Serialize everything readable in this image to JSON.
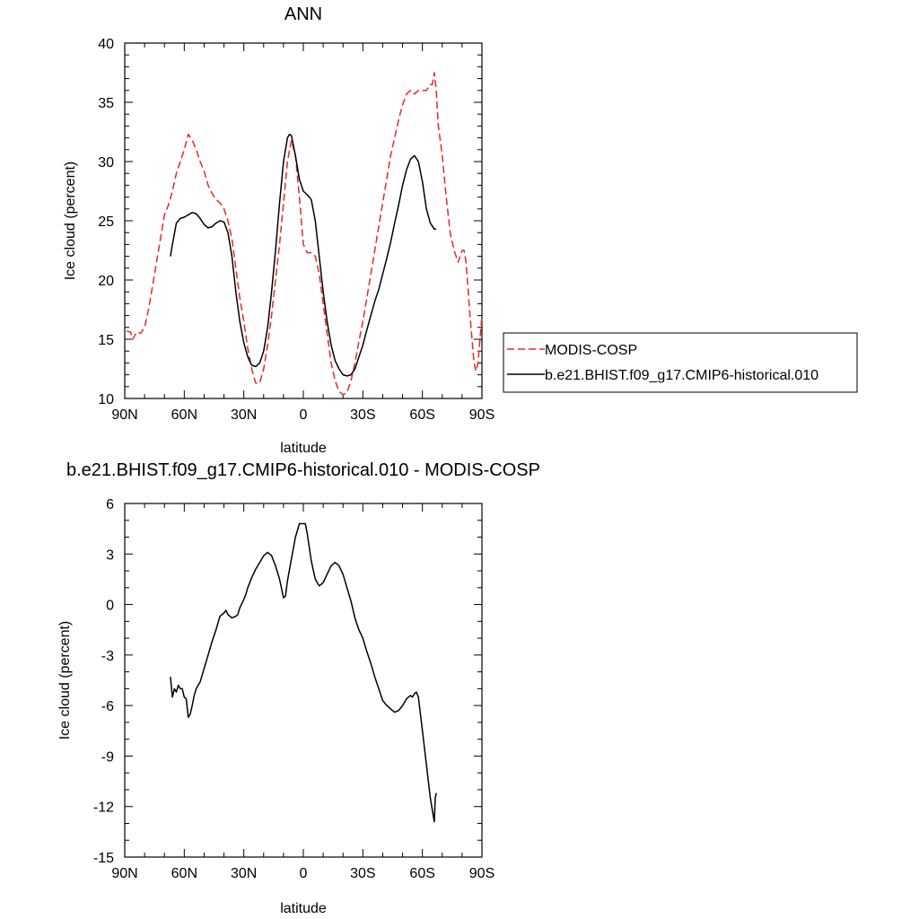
{
  "chart_data": [
    {
      "type": "line",
      "title": "ANN",
      "xlabel": "latitude",
      "ylabel": "Ice cloud (percent)",
      "xlim": [
        90,
        -90
      ],
      "ylim": [
        10,
        40
      ],
      "x_ticks": [
        90,
        60,
        30,
        0,
        -30,
        -60,
        -90
      ],
      "x_tick_labels": [
        "90N",
        "60N",
        "30N",
        "0",
        "30S",
        "60S",
        "90S"
      ],
      "y_ticks": [
        10,
        15,
        20,
        25,
        30,
        35,
        40
      ],
      "y_tick_labels": [
        "10",
        "15",
        "20",
        "25",
        "30",
        "35",
        "40"
      ],
      "legend_position": "right",
      "series": [
        {
          "name": "MODIS-COSP",
          "color": "#e8282a",
          "dash": "dashed",
          "points": [
            [
              89,
              15.7
            ],
            [
              87,
              15.6
            ],
            [
              86,
              15.0
            ],
            [
              84,
              15.6
            ],
            [
              82,
              15.5
            ],
            [
              80,
              16.0
            ],
            [
              78,
              17.5
            ],
            [
              75,
              20.5
            ],
            [
              72,
              23.5
            ],
            [
              70,
              25.5
            ],
            [
              68,
              26.3
            ],
            [
              66,
              27.5
            ],
            [
              64,
              29.0
            ],
            [
              62,
              30.0
            ],
            [
              60,
              31.0
            ],
            [
              58,
              32.3
            ],
            [
              56,
              31.8
            ],
            [
              54,
              31.0
            ],
            [
              52,
              30.0
            ],
            [
              50,
              29.2
            ],
            [
              48,
              28.0
            ],
            [
              46,
              27.3
            ],
            [
              44,
              26.8
            ],
            [
              42,
              26.5
            ],
            [
              40,
              26.0
            ],
            [
              38,
              25.0
            ],
            [
              36,
              23.5
            ],
            [
              34,
              21.0
            ],
            [
              32,
              18.5
            ],
            [
              30,
              16.5
            ],
            [
              28,
              14.2
            ],
            [
              26,
              12.5
            ],
            [
              24,
              11.3
            ],
            [
              22,
              11.3
            ],
            [
              20,
              12.5
            ],
            [
              18,
              14.5
            ],
            [
              16,
              17.0
            ],
            [
              14,
              20.0
            ],
            [
              12,
              23.0
            ],
            [
              10,
              26.5
            ],
            [
              8,
              30.0
            ],
            [
              6,
              31.8
            ],
            [
              4,
              30.5
            ],
            [
              2,
              27.0
            ],
            [
              0,
              23.0
            ],
            [
              -2,
              22.3
            ],
            [
              -4,
              22.3
            ],
            [
              -6,
              22.0
            ],
            [
              -8,
              20.5
            ],
            [
              -10,
              18.0
            ],
            [
              -12,
              15.5
            ],
            [
              -14,
              13.0
            ],
            [
              -16,
              11.5
            ],
            [
              -18,
              10.6
            ],
            [
              -20,
              10.3
            ],
            [
              -22,
              10.5
            ],
            [
              -24,
              11.5
            ],
            [
              -26,
              13.0
            ],
            [
              -28,
              14.8
            ],
            [
              -30,
              16.5
            ],
            [
              -32,
              18.5
            ],
            [
              -34,
              20.5
            ],
            [
              -36,
              22.5
            ],
            [
              -38,
              24.5
            ],
            [
              -40,
              26.5
            ],
            [
              -42,
              28.5
            ],
            [
              -44,
              30.5
            ],
            [
              -46,
              32.0
            ],
            [
              -48,
              33.5
            ],
            [
              -50,
              34.8
            ],
            [
              -52,
              35.7
            ],
            [
              -54,
              36.0
            ],
            [
              -56,
              35.7
            ],
            [
              -58,
              36.0
            ],
            [
              -60,
              36.0
            ],
            [
              -62,
              36.0
            ],
            [
              -64,
              36.5
            ],
            [
              -65,
              36.5
            ],
            [
              -66,
              37.5
            ],
            [
              -67,
              36.0
            ],
            [
              -68,
              33.0
            ],
            [
              -70,
              30.5
            ],
            [
              -72,
              27.0
            ],
            [
              -74,
              24.0
            ],
            [
              -76,
              22.5
            ],
            [
              -78,
              21.5
            ],
            [
              -80,
              22.5
            ],
            [
              -81,
              22.5
            ],
            [
              -82,
              21.5
            ],
            [
              -84,
              17.0
            ],
            [
              -86,
              13.0
            ],
            [
              -87,
              12.3
            ],
            [
              -88,
              13.0
            ],
            [
              -89,
              15.0
            ],
            [
              -90,
              17.0
            ]
          ]
        },
        {
          "name": "b.e21.BHIST.f09_g17.CMIP6-historical.010",
          "color": "#000000",
          "dash": "solid",
          "points": [
            [
              67,
              22.0
            ],
            [
              66,
              23.0
            ],
            [
              64,
              24.8
            ],
            [
              62,
              25.2
            ],
            [
              60,
              25.3
            ],
            [
              58,
              25.5
            ],
            [
              56,
              25.7
            ],
            [
              54,
              25.6
            ],
            [
              52,
              25.2
            ],
            [
              50,
              24.7
            ],
            [
              48,
              24.4
            ],
            [
              46,
              24.5
            ],
            [
              44,
              24.8
            ],
            [
              42,
              25.0
            ],
            [
              40,
              24.9
            ],
            [
              38,
              24.0
            ],
            [
              36,
              22.0
            ],
            [
              34,
              19.0
            ],
            [
              32,
              16.5
            ],
            [
              30,
              14.7
            ],
            [
              28,
              13.5
            ],
            [
              26,
              12.8
            ],
            [
              24,
              12.7
            ],
            [
              22,
              13.0
            ],
            [
              20,
              14.0
            ],
            [
              18,
              16.0
            ],
            [
              16,
              19.0
            ],
            [
              14,
              22.5
            ],
            [
              12,
              26.5
            ],
            [
              10,
              30.0
            ],
            [
              8,
              32.0
            ],
            [
              7,
              32.3
            ],
            [
              6,
              32.2
            ],
            [
              4,
              30.5
            ],
            [
              2,
              28.5
            ],
            [
              0,
              27.5
            ],
            [
              -2,
              27.2
            ],
            [
              -4,
              26.8
            ],
            [
              -6,
              25.0
            ],
            [
              -8,
              22.0
            ],
            [
              -10,
              19.0
            ],
            [
              -12,
              16.5
            ],
            [
              -14,
              14.5
            ],
            [
              -16,
              13.2
            ],
            [
              -18,
              12.5
            ],
            [
              -20,
              12.0
            ],
            [
              -22,
              11.9
            ],
            [
              -24,
              12.0
            ],
            [
              -26,
              12.5
            ],
            [
              -28,
              13.5
            ],
            [
              -30,
              14.5
            ],
            [
              -32,
              15.8
            ],
            [
              -34,
              17.0
            ],
            [
              -36,
              18.2
            ],
            [
              -38,
              19.2
            ],
            [
              -40,
              20.5
            ],
            [
              -42,
              21.8
            ],
            [
              -44,
              23.2
            ],
            [
              -46,
              24.8
            ],
            [
              -48,
              26.3
            ],
            [
              -50,
              28.0
            ],
            [
              -52,
              29.3
            ],
            [
              -54,
              30.2
            ],
            [
              -56,
              30.5
            ],
            [
              -58,
              30.0
            ],
            [
              -60,
              28.3
            ],
            [
              -62,
              26.0
            ],
            [
              -64,
              24.8
            ],
            [
              -66,
              24.3
            ],
            [
              -67,
              24.3
            ]
          ]
        }
      ]
    },
    {
      "type": "line",
      "title": "b.e21.BHIST.f09_g17.CMIP6-historical.010 - MODIS-COSP",
      "xlabel": "latitude",
      "ylabel": "Ice cloud (percent)",
      "xlim": [
        90,
        -90
      ],
      "ylim": [
        -15,
        6
      ],
      "x_ticks": [
        90,
        60,
        30,
        0,
        -30,
        -60,
        -90
      ],
      "x_tick_labels": [
        "90N",
        "60N",
        "30N",
        "0",
        "30S",
        "60S",
        "90S"
      ],
      "y_ticks": [
        -15,
        -12,
        -9,
        -6,
        -3,
        0,
        3,
        6
      ],
      "y_tick_labels": [
        "-15",
        "-12",
        "-9",
        "-6",
        "-3",
        "0",
        "3",
        "6"
      ],
      "series": [
        {
          "color": "#000000",
          "dash": "solid",
          "points": [
            [
              67,
              -4.3
            ],
            [
              66,
              -5.5
            ],
            [
              65,
              -5.0
            ],
            [
              64,
              -5.2
            ],
            [
              63,
              -4.8
            ],
            [
              62,
              -5.0
            ],
            [
              61,
              -5.0
            ],
            [
              60,
              -5.5
            ],
            [
              59,
              -5.6
            ],
            [
              58,
              -6.7
            ],
            [
              57,
              -6.5
            ],
            [
              56,
              -6.0
            ],
            [
              55,
              -5.4
            ],
            [
              54,
              -5.0
            ],
            [
              52,
              -4.6
            ],
            [
              50,
              -3.8
            ],
            [
              48,
              -3.0
            ],
            [
              46,
              -2.2
            ],
            [
              44,
              -1.5
            ],
            [
              42,
              -0.7
            ],
            [
              40,
              -0.5
            ],
            [
              39,
              -0.35
            ],
            [
              38,
              -0.6
            ],
            [
              36,
              -0.8
            ],
            [
              34,
              -0.7
            ],
            [
              33,
              -0.6
            ],
            [
              32,
              -0.2
            ],
            [
              30,
              0.3
            ],
            [
              29,
              0.6
            ],
            [
              28,
              1.0
            ],
            [
              26,
              1.6
            ],
            [
              24,
              2.1
            ],
            [
              22,
              2.5
            ],
            [
              20,
              2.9
            ],
            [
              18,
              3.1
            ],
            [
              16,
              2.9
            ],
            [
              14,
              2.3
            ],
            [
              12,
              1.5
            ],
            [
              10,
              0.4
            ],
            [
              9,
              0.5
            ],
            [
              8,
              1.4
            ],
            [
              6,
              2.7
            ],
            [
              4,
              4.0
            ],
            [
              2,
              4.8
            ],
            [
              0,
              4.8
            ],
            [
              -1,
              4.8
            ],
            [
              -2,
              4.2
            ],
            [
              -3,
              3.4
            ],
            [
              -4,
              2.6
            ],
            [
              -6,
              1.5
            ],
            [
              -8,
              1.1
            ],
            [
              -10,
              1.3
            ],
            [
              -12,
              1.8
            ],
            [
              -14,
              2.3
            ],
            [
              -16,
              2.5
            ],
            [
              -18,
              2.3
            ],
            [
              -20,
              1.8
            ],
            [
              -22,
              1.0
            ],
            [
              -24,
              0.2
            ],
            [
              -26,
              -0.8
            ],
            [
              -28,
              -1.5
            ],
            [
              -30,
              -2.0
            ],
            [
              -32,
              -2.8
            ],
            [
              -34,
              -3.5
            ],
            [
              -36,
              -4.3
            ],
            [
              -38,
              -5.0
            ],
            [
              -40,
              -5.7
            ],
            [
              -42,
              -6.0
            ],
            [
              -44,
              -6.2
            ],
            [
              -46,
              -6.4
            ],
            [
              -48,
              -6.3
            ],
            [
              -50,
              -6.0
            ],
            [
              -52,
              -5.6
            ],
            [
              -54,
              -5.4
            ],
            [
              -55,
              -5.5
            ],
            [
              -56,
              -5.3
            ],
            [
              -57,
              -5.2
            ],
            [
              -58,
              -5.5
            ],
            [
              -60,
              -7.5
            ],
            [
              -62,
              -9.5
            ],
            [
              -64,
              -11.5
            ],
            [
              -65,
              -12.2
            ],
            [
              -66,
              -12.9
            ],
            [
              -66.5,
              -11.5
            ],
            [
              -67,
              -11.2
            ]
          ]
        }
      ]
    }
  ]
}
